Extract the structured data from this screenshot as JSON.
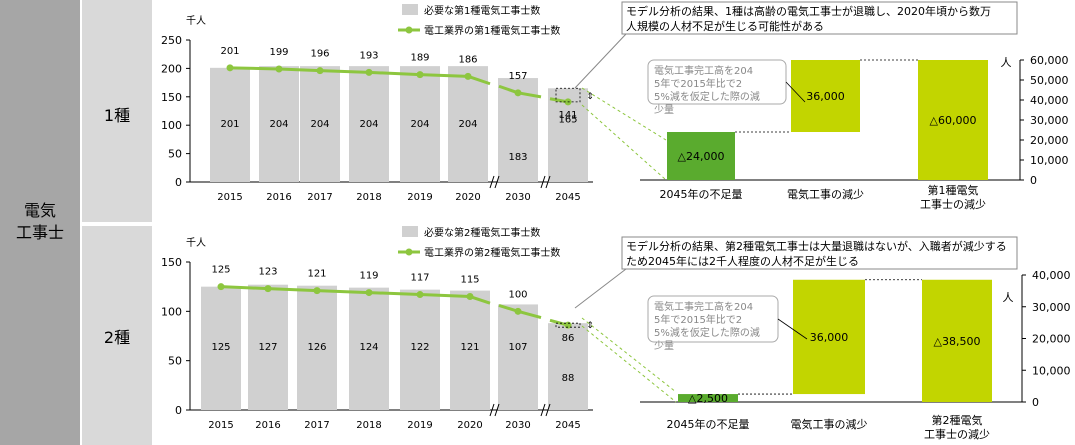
{
  "sidebar": {
    "category": "電気\n工事士"
  },
  "rows": [
    "1種",
    "2種"
  ],
  "chart_data": [
    {
      "type": "bar",
      "x_unit": "千人",
      "categories": [
        "2015",
        "2016",
        "2017",
        "2018",
        "2019",
        "2020",
        "2030",
        "2045"
      ],
      "ylim": [
        0,
        250
      ],
      "yticks": [
        0,
        50,
        100,
        150,
        200,
        250
      ],
      "series": [
        {
          "name": "必要な第1種電気工事士数",
          "kind": "bar",
          "color": "#d0d0d0",
          "values": [
            201,
            204,
            204,
            204,
            204,
            204,
            183,
            165
          ]
        },
        {
          "name": "電工業界の第1種電気工事士数",
          "kind": "line",
          "color": "#8dc63f",
          "values": [
            201,
            199,
            196,
            193,
            189,
            186,
            157,
            141
          ]
        }
      ],
      "callout": "モデル分析の結果、1種は高齢の電気工事士が退職し、2020年頃から数万人規模の人材不足が生じる可能性がある",
      "waterfall": {
        "unit": "人",
        "ylim": [
          0,
          60000
        ],
        "yticks": [
          0,
          10000,
          20000,
          30000,
          40000,
          50000,
          60000
        ],
        "note": "電気工事完工高を2045年で2015年比で25%減を仮定した際の減少量",
        "items": [
          {
            "label": "2045年の不足量",
            "value": "△24,000",
            "amount": 24000,
            "base": 0,
            "color": "#5aab2e"
          },
          {
            "label": "電気工事の減少",
            "value": "36,000",
            "amount": 36000,
            "base": 24000,
            "color": "#c2d500"
          },
          {
            "label": "第1種電気工事士の減少",
            "value": "△60,000",
            "amount": 60000,
            "base": 0,
            "color": "#c2d500"
          }
        ]
      }
    },
    {
      "type": "bar",
      "x_unit": "千人",
      "categories": [
        "2015",
        "2016",
        "2017",
        "2018",
        "2019",
        "2020",
        "2030",
        "2045"
      ],
      "ylim": [
        0,
        150
      ],
      "yticks": [
        0,
        50,
        100,
        150
      ],
      "series": [
        {
          "name": "必要な第2種電気工事士数",
          "kind": "bar",
          "color": "#d0d0d0",
          "values": [
            125,
            127,
            126,
            124,
            122,
            121,
            107,
            88
          ]
        },
        {
          "name": "電工業界の第2種電気工事士数",
          "kind": "line",
          "color": "#8dc63f",
          "values": [
            125,
            123,
            121,
            119,
            117,
            115,
            100,
            86
          ]
        }
      ],
      "callout": "モデル分析の結果、第2種電気工事士は大量退職はないが、入職者が減少するため2045年には2千人程度の人材不足が生じる",
      "waterfall": {
        "unit": "人",
        "ylim": [
          0,
          40000
        ],
        "yticks": [
          0,
          10000,
          20000,
          30000,
          40000
        ],
        "note": "電気工事完工高を2045年で2015年比で25%減を仮定した際の減少量",
        "items": [
          {
            "label": "2045年の不足量",
            "value": "△2,500",
            "amount": 2500,
            "base": 0,
            "color": "#5aab2e"
          },
          {
            "label": "電気工事の減少",
            "value": "36,000",
            "amount": 36000,
            "base": 2500,
            "color": "#c2d500"
          },
          {
            "label": "第2種電気工事士の減少",
            "value": "△38,500",
            "amount": 38500,
            "base": 0,
            "color": "#c2d500"
          }
        ]
      }
    }
  ]
}
